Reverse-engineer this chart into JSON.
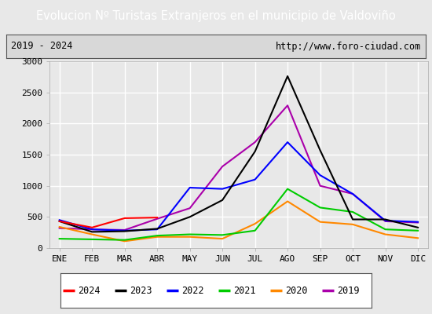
{
  "title": "Evolucion Nº Turistas Extranjeros en el municipio de Valdoviño",
  "subtitle_left": "2019 - 2024",
  "subtitle_right": "http://www.foro-ciudad.com",
  "title_bg": "#4d7ebf",
  "title_color": "white",
  "months": [
    "ENE",
    "FEB",
    "MAR",
    "ABR",
    "MAY",
    "JUN",
    "JUL",
    "AGO",
    "SEP",
    "OCT",
    "NOV",
    "DIC"
  ],
  "ylim": [
    0,
    3000
  ],
  "yticks": [
    0,
    500,
    1000,
    1500,
    2000,
    2500,
    3000
  ],
  "series": {
    "2024": {
      "color": "#ff0000",
      "data": [
        430,
        330,
        480,
        490,
        null,
        null,
        null,
        null,
        null,
        null,
        null,
        null
      ]
    },
    "2023": {
      "color": "#000000",
      "data": [
        430,
        260,
        270,
        310,
        500,
        770,
        1550,
        2760,
        1570,
        460,
        460,
        330
      ]
    },
    "2022": {
      "color": "#0000ff",
      "data": [
        450,
        300,
        280,
        300,
        970,
        950,
        1100,
        1700,
        1170,
        870,
        440,
        420
      ]
    },
    "2021": {
      "color": "#00cc00",
      "data": [
        150,
        140,
        130,
        200,
        220,
        210,
        280,
        950,
        650,
        580,
        300,
        280
      ]
    },
    "2020": {
      "color": "#ff8800",
      "data": [
        340,
        220,
        110,
        180,
        180,
        150,
        390,
        750,
        420,
        380,
        220,
        160
      ]
    },
    "2019": {
      "color": "#aa00aa",
      "data": [
        320,
        300,
        290,
        470,
        640,
        1310,
        1700,
        2290,
        1000,
        870,
        430,
        410
      ]
    }
  },
  "fig_bg": "#e8e8e8",
  "plot_bg": "#e8e8e8",
  "grid_color": "white",
  "legend_order": [
    "2024",
    "2023",
    "2022",
    "2021",
    "2020",
    "2019"
  ]
}
